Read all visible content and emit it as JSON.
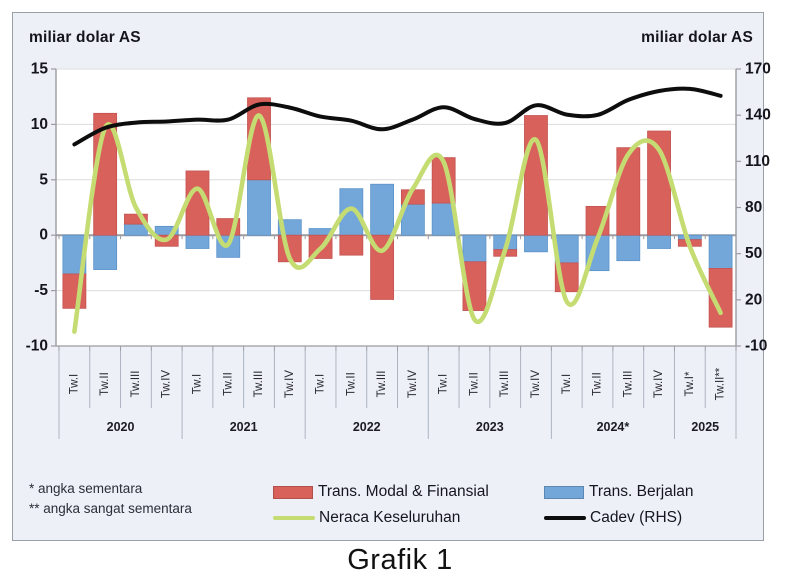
{
  "figure": {
    "left_axis_title": "miliar dolar AS",
    "right_axis_title": "miliar dolar AS",
    "footnotes": [
      "* angka sementara",
      "** angka sangat sementara"
    ],
    "caption": "Grafik 1"
  },
  "chart_data": {
    "type": "bar",
    "subtype": "stacked-bars-with-lines-dual-axis",
    "x_groups": [
      {
        "year": "2020",
        "quarters": [
          "Tw.I",
          "Tw.II",
          "Tw.III",
          "Tw.IV"
        ]
      },
      {
        "year": "2021",
        "quarters": [
          "Tw.I",
          "Tw.II",
          "Tw.III",
          "Tw.IV"
        ]
      },
      {
        "year": "2022",
        "quarters": [
          "Tw.I",
          "Tw.II",
          "Tw.III",
          "Tw.IV"
        ]
      },
      {
        "year": "2023",
        "quarters": [
          "Tw.I",
          "Tw.II",
          "Tw.III",
          "Tw.IV"
        ]
      },
      {
        "year": "2024*",
        "quarters": [
          "Tw.I",
          "Tw.II",
          "Tw.III",
          "Tw.IV"
        ]
      },
      {
        "year": "2025",
        "quarters": [
          "Tw.I*",
          "Tw.II**"
        ]
      }
    ],
    "left_axis": {
      "title": "miliar dolar AS",
      "ticks": [
        15,
        10,
        5,
        0,
        -5,
        -10
      ],
      "min": -10,
      "max": 15
    },
    "right_axis": {
      "title": "miliar dolar AS",
      "ticks": [
        170,
        140,
        110,
        80,
        50,
        20,
        -10
      ],
      "min": -10,
      "max": 170
    },
    "grid": true,
    "legend_position": "bottom",
    "series": [
      {
        "name": "Trans. Modal & Finansial",
        "type": "bar",
        "axis": "left",
        "color": "#d8615c",
        "border_color": "#c4534f",
        "values": [
          -3.1,
          11.0,
          0.9,
          -1.0,
          5.8,
          1.5,
          7.4,
          -2.4,
          -2.1,
          -1.8,
          -5.8,
          1.3,
          4.1,
          -4.4,
          -0.6,
          10.8,
          -2.6,
          2.6,
          7.9,
          9.4,
          -0.6,
          -5.3
        ]
      },
      {
        "name": "Trans. Berjalan",
        "type": "bar",
        "axis": "left",
        "color": "#73a7d9",
        "border_color": "#5b93cb",
        "values": [
          -3.5,
          -3.1,
          1.0,
          0.8,
          -1.2,
          -2.0,
          5.0,
          1.4,
          0.6,
          4.2,
          4.6,
          2.8,
          2.9,
          -2.4,
          -1.3,
          -1.5,
          -2.5,
          -3.2,
          -2.3,
          -1.2,
          -0.4,
          -3.0
        ]
      },
      {
        "name": "Neraca Keseluruhan",
        "type": "line",
        "axis": "left",
        "color": "#c5dc72",
        "values": [
          -8.7,
          9.7,
          2.5,
          -0.4,
          4.2,
          -0.8,
          10.8,
          -2.1,
          -1.2,
          2.4,
          -1.4,
          4.2,
          6.6,
          -7.6,
          -1.3,
          8.6,
          -6.0,
          -0.3,
          7.3,
          7.7,
          -1.0,
          -7.0
        ]
      },
      {
        "name": "Cadev (RHS)",
        "type": "line",
        "axis": "right",
        "color": "#0d0d0d",
        "values": [
          121.0,
          131.7,
          135.2,
          135.9,
          137.1,
          137.1,
          146.9,
          144.9,
          139.1,
          136.4,
          130.8,
          137.2,
          145.2,
          137.5,
          134.9,
          146.4,
          140.4,
          140.2,
          149.9,
          155.7,
          157.1,
          152.6
        ]
      }
    ]
  }
}
